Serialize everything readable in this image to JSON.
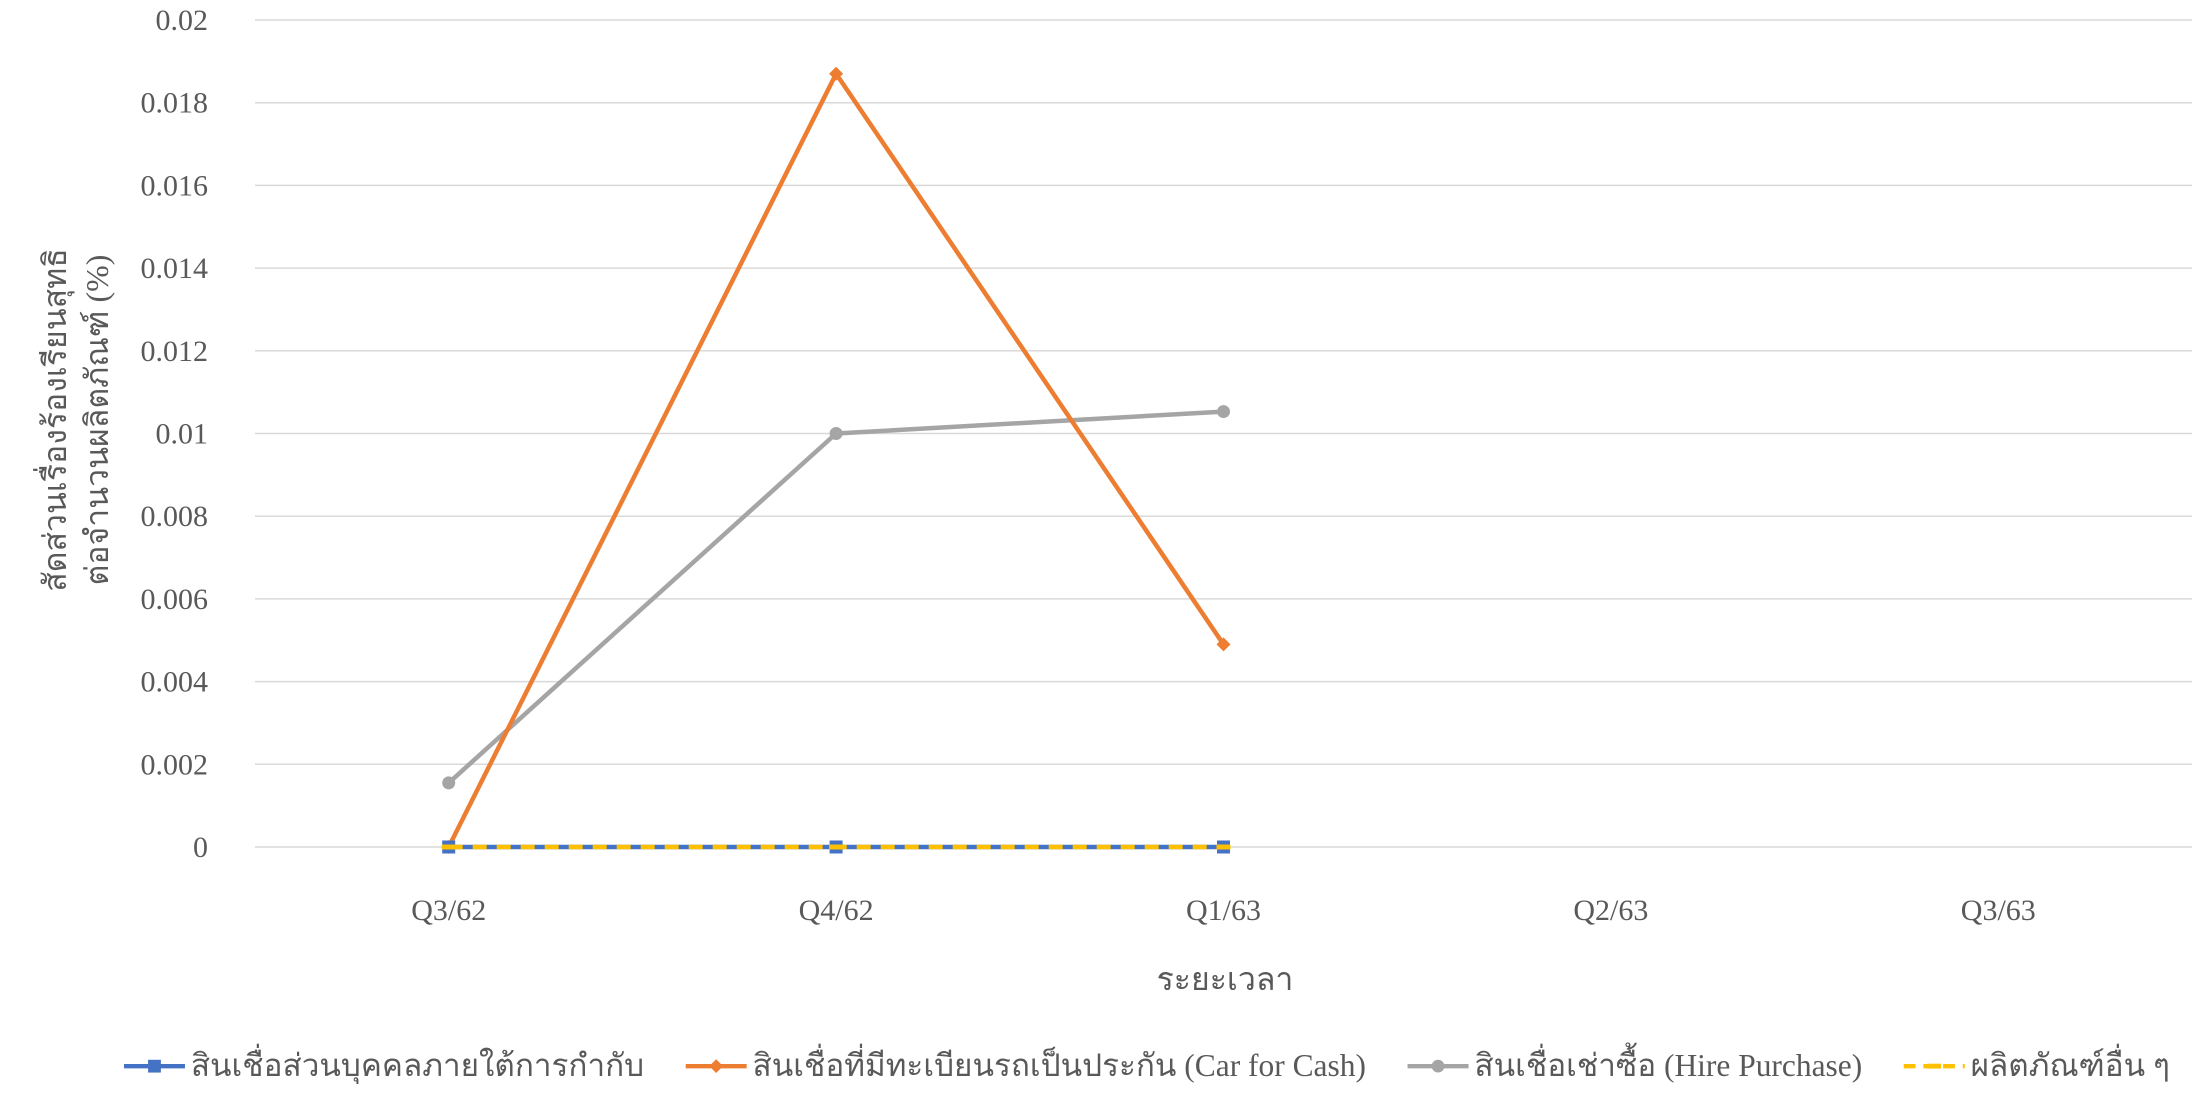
{
  "chart_data": {
    "type": "line",
    "title": "",
    "xlabel": "ระยะเวลา",
    "ylabel_lines": [
      "สัดส่วนเรื่องร้องเรียนสุทธิ",
      "ต่อจำนวนผลิตภัณฑ์ (%)"
    ],
    "categories": [
      "Q3/62",
      "Q4/62",
      "Q1/63",
      "Q2/63",
      "Q3/63"
    ],
    "ylim": [
      0,
      0.02
    ],
    "yticks": [
      "0",
      "0.002",
      "0.004",
      "0.006",
      "0.008",
      "0.01",
      "0.012",
      "0.014",
      "0.016",
      "0.018",
      "0.02"
    ],
    "grid": true,
    "legend_position": "bottom",
    "series": [
      {
        "name": "สินเชื่อส่วนบุคคลภายใต้การกำกับ",
        "color": "#4472C4",
        "marker": "square",
        "dash": "solid",
        "values": [
          0,
          0,
          0,
          null,
          null
        ]
      },
      {
        "name": "สินเชื่อที่มีทะเบียนรถเป็นประกัน (Car for Cash)",
        "color": "#ED7D31",
        "marker": "diamond",
        "dash": "solid",
        "values": [
          0,
          0.0187,
          0.0049,
          null,
          null
        ]
      },
      {
        "name": "สินเชื่อเช่าซื้อ (Hire Purchase)",
        "color": "#A5A5A5",
        "marker": "circle",
        "dash": "solid",
        "values": [
          0.00155,
          0.01,
          0.01053,
          null,
          null
        ]
      },
      {
        "name": "ผลิตภัณฑ์อื่น ๆ",
        "color": "#FFC000",
        "marker": "dash",
        "dash": "dashed",
        "values": [
          0,
          0,
          0,
          null,
          null
        ]
      }
    ]
  }
}
